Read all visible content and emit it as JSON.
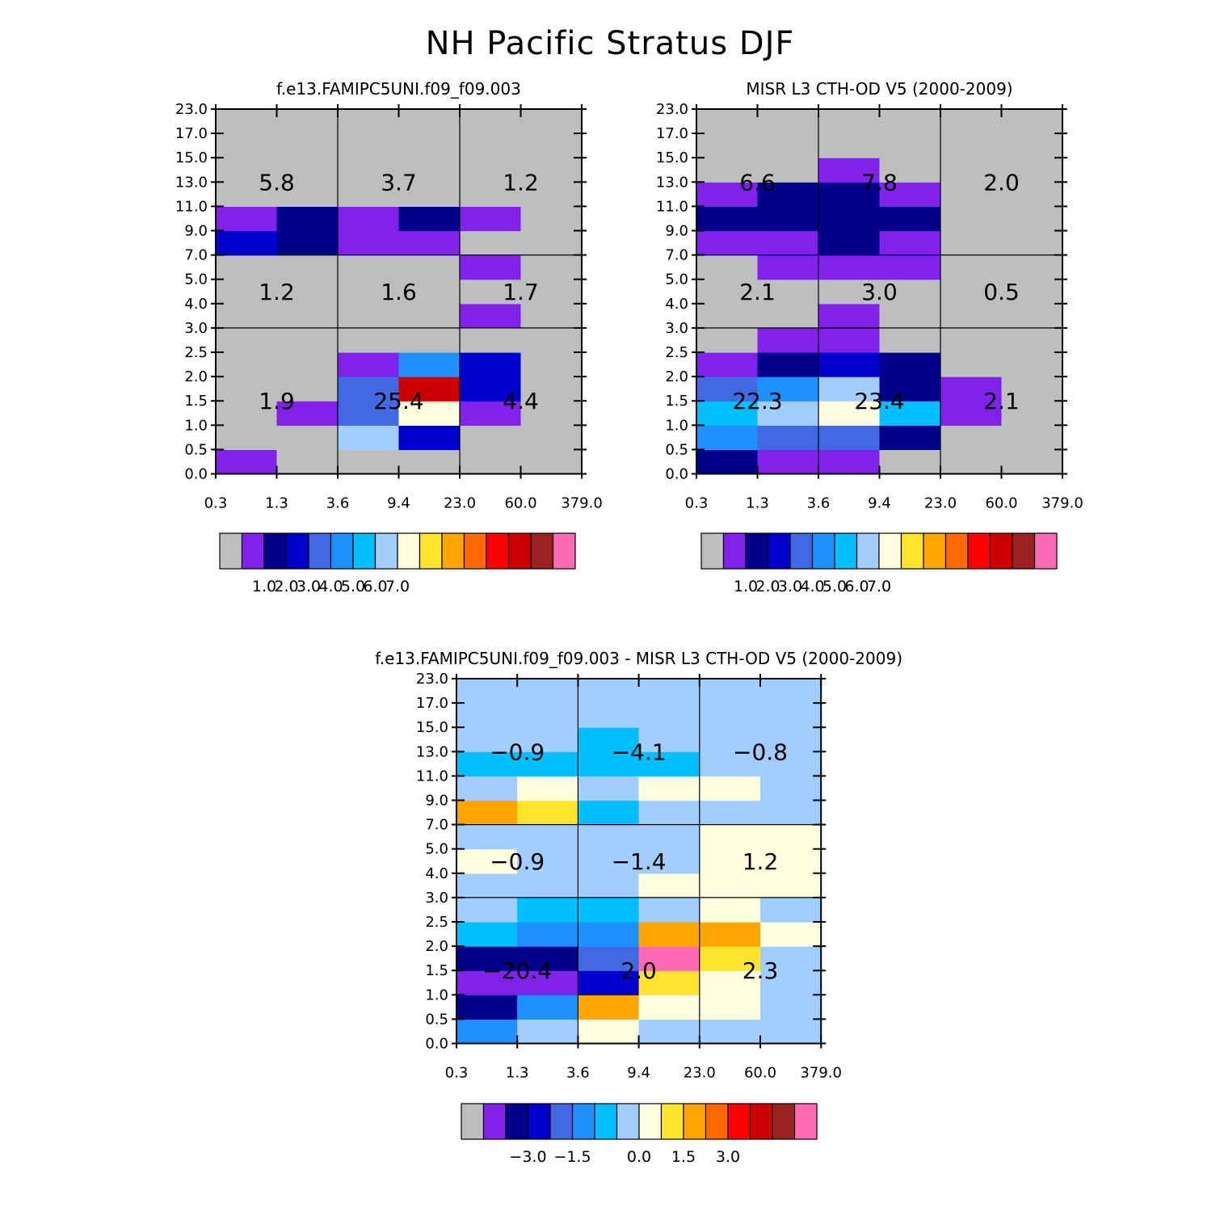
{
  "title": "NH Pacific Stratus DJF",
  "palette": [
    "#bebebe",
    "#8122eb",
    "#00008b",
    "#0000cd",
    "#4169e1",
    "#1e90ff",
    "#00bfff",
    "#a2cdff",
    "#ffffe0",
    "#ffe32c",
    "#ffa500",
    "#ff6a00",
    "#ff0000",
    "#cd0000",
    "#9b2222",
    "#ff6ab5"
  ],
  "chart_data": [
    {
      "type": "heatmap",
      "title": "f.e13.FAMIPC5UNI.f09_f09.003",
      "x_ticks": [
        "0.3",
        "1.3",
        "3.6",
        "9.4",
        "23.0",
        "60.0",
        "379.0"
      ],
      "y_ticks": [
        "0.0",
        "0.5",
        "1.0",
        "1.5",
        "2.0",
        "2.5",
        "3.0",
        "4.0",
        "5.0",
        "7.0",
        "9.0",
        "11.0",
        "13.0",
        "15.0",
        "17.0",
        "23.0"
      ],
      "cells": [
        [
          1,
          0,
          0,
          0,
          0,
          0
        ],
        [
          0,
          0,
          7,
          3,
          0,
          0
        ],
        [
          0,
          1,
          4,
          8,
          1,
          0
        ],
        [
          0,
          0,
          4,
          13,
          3,
          0
        ],
        [
          0,
          0,
          1,
          5,
          3,
          0
        ],
        [
          0,
          0,
          0,
          0,
          0,
          0
        ],
        [
          0,
          0,
          0,
          0,
          1,
          0
        ],
        [
          0,
          0,
          0,
          0,
          0,
          0
        ],
        [
          0,
          0,
          0,
          0,
          1,
          0
        ],
        [
          3,
          2,
          1,
          1,
          0,
          0
        ],
        [
          1,
          2,
          1,
          2,
          1,
          0
        ],
        [
          0,
          0,
          0,
          0,
          0,
          0
        ],
        [
          0,
          0,
          0,
          0,
          0,
          0
        ],
        [
          0,
          0,
          0,
          0,
          0,
          0
        ],
        [
          0,
          0,
          0,
          0,
          0,
          0
        ]
      ],
      "group_labels": [
        [
          "1.9",
          "25.4",
          "4.4"
        ],
        [
          "1.2",
          "1.6",
          "1.7"
        ],
        [
          "5.8",
          "3.7",
          "1.2"
        ]
      ],
      "colorbar": {
        "levels": [
          "1.0",
          "2.0",
          "3.0",
          "4.0",
          "5.0",
          "6.0",
          "7.0"
        ]
      }
    },
    {
      "type": "heatmap",
      "title": "MISR L3 CTH-OD V5 (2000-2009)",
      "x_ticks": [
        "0.3",
        "1.3",
        "3.6",
        "9.4",
        "23.0",
        "60.0",
        "379.0"
      ],
      "y_ticks": [
        "0.0",
        "0.5",
        "1.0",
        "1.5",
        "2.0",
        "2.5",
        "3.0",
        "4.0",
        "5.0",
        "7.0",
        "9.0",
        "11.0",
        "13.0",
        "15.0",
        "17.0",
        "23.0"
      ],
      "cells": [
        [
          2,
          1,
          1,
          0,
          0,
          0
        ],
        [
          5,
          4,
          4,
          2,
          0,
          0
        ],
        [
          6,
          7,
          8,
          6,
          1,
          0
        ],
        [
          4,
          5,
          7,
          2,
          1,
          0
        ],
        [
          1,
          2,
          3,
          2,
          0,
          0
        ],
        [
          0,
          1,
          1,
          0,
          0,
          0
        ],
        [
          0,
          0,
          1,
          0,
          0,
          0
        ],
        [
          0,
          0,
          0,
          0,
          0,
          0
        ],
        [
          0,
          1,
          1,
          1,
          0,
          0
        ],
        [
          1,
          1,
          2,
          1,
          0,
          0
        ],
        [
          2,
          2,
          2,
          2,
          0,
          0
        ],
        [
          1,
          2,
          2,
          1,
          0,
          0
        ],
        [
          0,
          0,
          1,
          0,
          0,
          0
        ],
        [
          0,
          0,
          0,
          0,
          0,
          0
        ],
        [
          0,
          0,
          0,
          0,
          0,
          0
        ]
      ],
      "group_labels": [
        [
          "22.3",
          "23.4",
          "2.1"
        ],
        [
          "2.1",
          "3.0",
          "0.5"
        ],
        [
          "6.6",
          "7.8",
          "2.0"
        ]
      ],
      "colorbar": {
        "levels": [
          "1.0",
          "2.0",
          "3.0",
          "4.0",
          "5.0",
          "6.0",
          "7.0"
        ]
      }
    },
    {
      "type": "heatmap",
      "title": "f.e13.FAMIPC5UNI.f09_f09.003 - MISR L3 CTH-OD V5 (2000-2009)",
      "x_ticks": [
        "0.3",
        "1.3",
        "3.6",
        "9.4",
        "23.0",
        "60.0",
        "379.0"
      ],
      "y_ticks": [
        "0.0",
        "0.5",
        "1.0",
        "1.5",
        "2.0",
        "2.5",
        "3.0",
        "4.0",
        "5.0",
        "7.0",
        "9.0",
        "11.0",
        "13.0",
        "15.0",
        "17.0",
        "23.0"
      ],
      "cells": [
        [
          5,
          7,
          8,
          7,
          7,
          7
        ],
        [
          2,
          5,
          10,
          8,
          8,
          7
        ],
        [
          1,
          1,
          3,
          9,
          8,
          7
        ],
        [
          2,
          2,
          4,
          15,
          9,
          7
        ],
        [
          6,
          5,
          5,
          10,
          10,
          8
        ],
        [
          7,
          6,
          6,
          7,
          8,
          7
        ],
        [
          7,
          7,
          7,
          8,
          8,
          8
        ],
        [
          8,
          7,
          7,
          7,
          8,
          8
        ],
        [
          7,
          7,
          7,
          7,
          8,
          8
        ],
        [
          10,
          9,
          6,
          7,
          7,
          7
        ],
        [
          7,
          8,
          7,
          8,
          8,
          7
        ],
        [
          6,
          6,
          6,
          6,
          7,
          7
        ],
        [
          7,
          7,
          6,
          7,
          7,
          7
        ],
        [
          7,
          7,
          7,
          7,
          7,
          7
        ],
        [
          7,
          7,
          7,
          7,
          7,
          7
        ]
      ],
      "group_labels": [
        [
          "-20.4",
          "2.0",
          "2.3"
        ],
        [
          "-0.9",
          "-1.4",
          "1.2"
        ],
        [
          "-0.9",
          "-4.1",
          "-0.8"
        ]
      ],
      "colorbar": {
        "levels": [
          "-3.0",
          "-1.5",
          "0.0",
          "1.5",
          "3.0"
        ]
      }
    }
  ]
}
